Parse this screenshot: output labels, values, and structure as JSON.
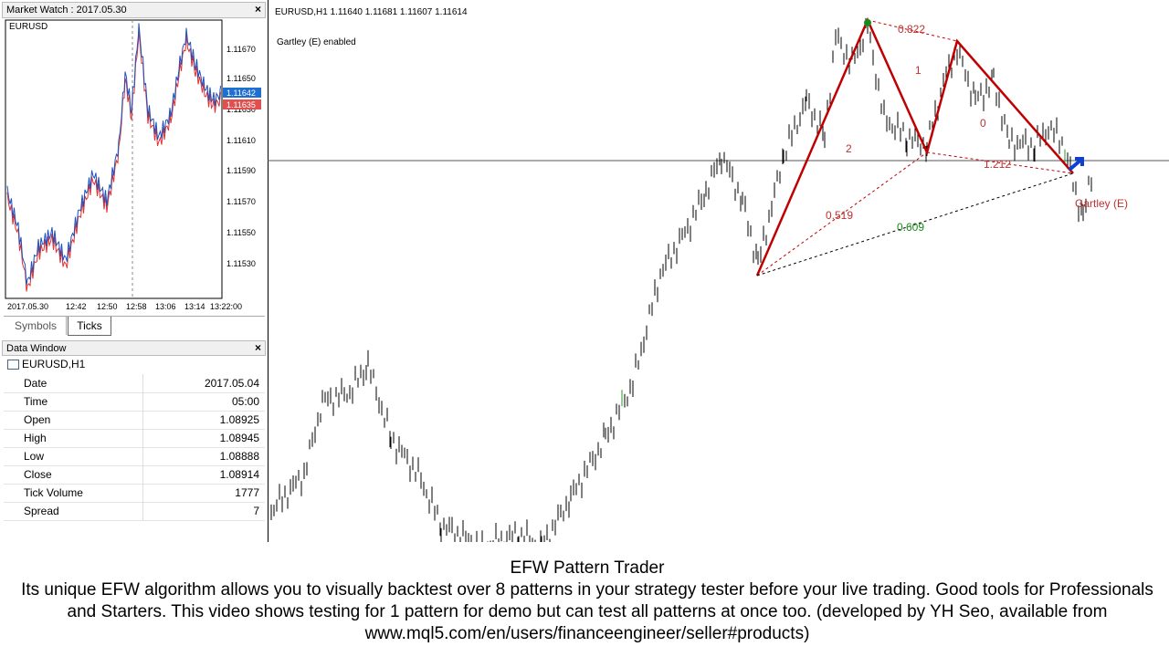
{
  "market_watch": {
    "title": "Market Watch : 2017.05.30",
    "symbol": "EURUSD",
    "price_labels": [
      "1.11670",
      "1.11650",
      "1.11630",
      "1.11610",
      "1.11590",
      "1.11570",
      "1.11550",
      "1.11530"
    ],
    "bid": "1.11642",
    "ask": "1.11635",
    "time_labels": [
      "2017.05.30",
      "12:42",
      "12:50",
      "12:58",
      "13:06",
      "13:14",
      "13:22:00"
    ],
    "tabs": [
      "Symbols",
      "Ticks"
    ]
  },
  "data_window": {
    "title": "Data Window",
    "symbol": "EURUSD,H1",
    "rows": [
      [
        "Date",
        "2017.05.04"
      ],
      [
        "Time",
        "05:00"
      ],
      [
        "Open",
        "1.08925"
      ],
      [
        "High",
        "1.08945"
      ],
      [
        "Low",
        "1.08888"
      ],
      [
        "Close",
        "1.08914"
      ],
      [
        "Tick Volume",
        "1777"
      ],
      [
        "Spread",
        "7"
      ]
    ]
  },
  "chart": {
    "header": "EURUSD,H1  1.11640 1.11681 1.11607 1.11614",
    "status": "Gartley (E) enabled",
    "annotations": [
      "0.822",
      "1",
      "0",
      "2",
      "1.212",
      "0.519",
      "0.609",
      "Gartley (E)"
    ]
  },
  "caption": {
    "title": "EFW Pattern Trader",
    "text": "Its unique EFW algorithm allows you to visually backtest over 8 patterns in your strategy tester before your live trading. Good tools for Professionals and Starters. This video shows testing for 1 pattern for demo but can test all patterns at once too. (developed by YH Seo, available from www.mql5.com/en/users/financeengineer/seller#products)"
  }
}
